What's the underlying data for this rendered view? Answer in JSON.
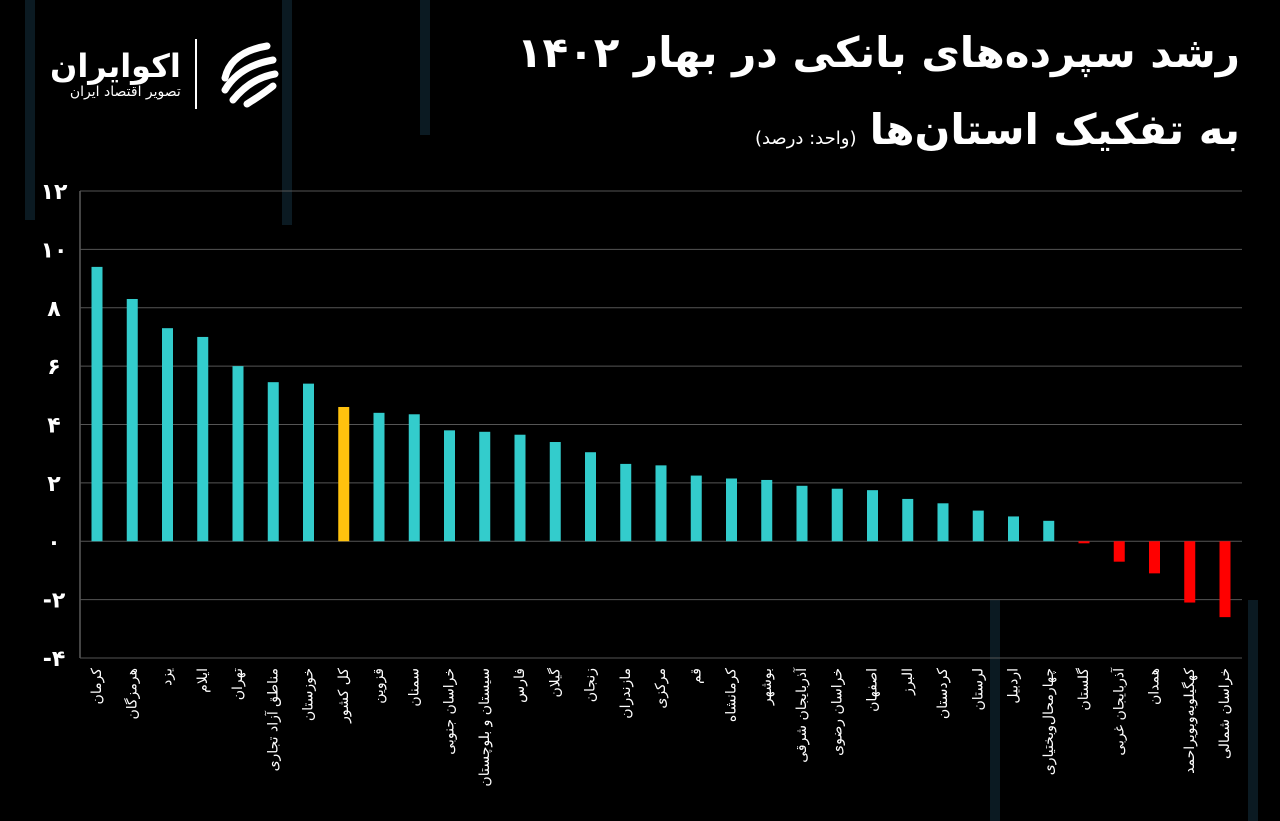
{
  "logo": {
    "name": "اکوایران",
    "tagline": "تصویر اقتصاد ایران"
  },
  "chart_data": {
    "type": "bar",
    "title": "رشد سپرده‌های بانکی در بهار ۱۴۰۲",
    "subtitle": "به تفکیک استان‌ها",
    "unit": "(واحد: درصد)",
    "ylim": [
      -4,
      12
    ],
    "yticks": [
      12,
      10,
      8,
      6,
      4,
      2,
      0,
      -2,
      -4
    ],
    "ytick_labels": [
      "۱۲",
      "۱۰",
      "۸",
      "۶",
      "۴",
      "۲",
      "۰",
      "-۲",
      "-۴"
    ],
    "grid": true,
    "colors": {
      "positive": "#33cccc",
      "national": "#ffc20e",
      "negative": "#ff0000"
    },
    "categories": [
      "کرمان",
      "هرمزگان",
      "یزد",
      "ایلام",
      "تهران",
      "مناطق آزاد تجاری",
      "خوزستان",
      "کل کشور",
      "قزوین",
      "سمنان",
      "خراسان جنوبی",
      "سیستان و بلوچستان",
      "فارس",
      "گیلان",
      "زنجان",
      "مازندران",
      "مرکزی",
      "قم",
      "کرمانشاه",
      "بوشهر",
      "آذربایجان شرقی",
      "خراسان رضوی",
      "اصفهان",
      "البرز",
      "کردستان",
      "لرستان",
      "اردبیل",
      "چهارمحال‌وبختیاری",
      "گلستان",
      "آذربایجان غربی",
      "همدان",
      "کهگیلویه‌وبویراحمد",
      "خراسان شمالی"
    ],
    "values": [
      9.4,
      8.3,
      7.3,
      7.0,
      6.0,
      5.45,
      5.4,
      4.6,
      4.4,
      4.35,
      3.8,
      3.75,
      3.65,
      3.4,
      3.05,
      2.65,
      2.6,
      2.25,
      2.15,
      2.1,
      1.9,
      1.8,
      1.75,
      1.45,
      1.3,
      1.05,
      0.85,
      0.7,
      -0.07,
      -0.7,
      -1.1,
      -2.1,
      -2.6
    ],
    "highlight": "کل کشور"
  }
}
